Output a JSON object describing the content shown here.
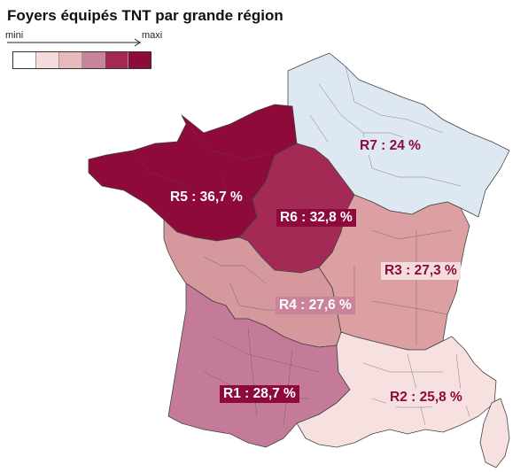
{
  "title": "Foyers équipés TNT par grande région",
  "legend": {
    "mini": "mini",
    "maxi": "maxi",
    "colors": [
      "#ffffff",
      "#f4dcdc",
      "#e9b9bd",
      "#c9839b",
      "#a42a55",
      "#8e0a3a"
    ]
  },
  "regions": [
    {
      "id": "R7",
      "label": "R7 : 24 %",
      "value": 24.0,
      "color": "#dde8f3",
      "text_color": "#8e0a3a",
      "label_bg": "#dde8f3"
    },
    {
      "id": "R5",
      "label": "R5 : 36,7 %",
      "value": 36.7,
      "color": "#8e0a3a",
      "text_color": "#ffffff",
      "label_bg": "#8e0a3a"
    },
    {
      "id": "R6",
      "label": "R6 : 32,8 %",
      "value": 32.8,
      "color": "#a42a55",
      "text_color": "#ffffff",
      "label_bg": "#8e0a3a"
    },
    {
      "id": "R3",
      "label": "R3 : 27,3 %",
      "value": 27.3,
      "color": "#dca0a3",
      "text_color": "#8e0a3a",
      "label_bg": "#f4dcdc"
    },
    {
      "id": "R4",
      "label": "R4 : 27,6 %",
      "value": 27.6,
      "color": "#d5989c",
      "text_color": "#ffffff",
      "label_bg": "#c9839b"
    },
    {
      "id": "R1",
      "label": "R1 : 28,7 %",
      "value": 28.7,
      "color": "#c47b99",
      "text_color": "#ffffff",
      "label_bg": "#8e0a3a"
    },
    {
      "id": "R2",
      "label": "R2 : 25,8 %",
      "value": 25.8,
      "color": "#f6e0e0",
      "text_color": "#8e0a3a",
      "label_bg": "#f6e0e0"
    }
  ]
}
